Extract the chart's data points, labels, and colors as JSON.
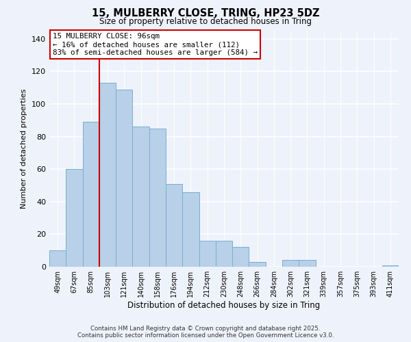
{
  "title_line1": "15, MULBERRY CLOSE, TRING, HP23 5DZ",
  "title_line2": "Size of property relative to detached houses in Tring",
  "xlabel": "Distribution of detached houses by size in Tring",
  "ylabel": "Number of detached properties",
  "categories": [
    "49sqm",
    "67sqm",
    "85sqm",
    "103sqm",
    "121sqm",
    "140sqm",
    "158sqm",
    "176sqm",
    "194sqm",
    "212sqm",
    "230sqm",
    "248sqm",
    "266sqm",
    "284sqm",
    "302sqm",
    "321sqm",
    "339sqm",
    "357sqm",
    "375sqm",
    "393sqm",
    "411sqm"
  ],
  "values": [
    10,
    60,
    89,
    113,
    109,
    86,
    85,
    51,
    46,
    16,
    16,
    12,
    3,
    0,
    4,
    4,
    0,
    0,
    0,
    0,
    1
  ],
  "bar_color": "#b8d0e8",
  "bar_edge_color": "#7aaed0",
  "vline_x_index": 3,
  "vline_color": "#cc0000",
  "annotation_title": "15 MULBERRY CLOSE: 96sqm",
  "annotation_line2": "← 16% of detached houses are smaller (112)",
  "annotation_line3": "83% of semi-detached houses are larger (584) →",
  "annotation_box_color": "#ffffff",
  "annotation_box_edge": "#cc0000",
  "ylim": [
    0,
    145
  ],
  "yticks": [
    0,
    20,
    40,
    60,
    80,
    100,
    120,
    140
  ],
  "footer_line1": "Contains HM Land Registry data © Crown copyright and database right 2025.",
  "footer_line2": "Contains public sector information licensed under the Open Government Licence v3.0.",
  "bg_color": "#eef2fa"
}
